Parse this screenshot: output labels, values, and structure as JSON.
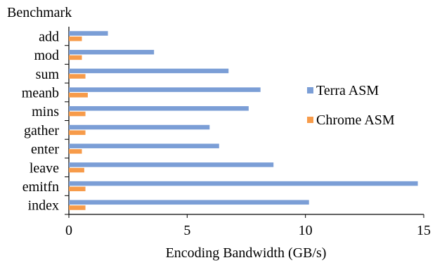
{
  "chart_data": {
    "type": "bar",
    "orientation": "horizontal",
    "title": "",
    "ylabel": "Benchmark",
    "xlabel": "Encoding Bandwidth (GB/s)",
    "categories": [
      "add",
      "mod",
      "sum",
      "meanb",
      "mins",
      "gather",
      "enter",
      "leave",
      "emitfn",
      "index"
    ],
    "series": [
      {
        "name": "Terra ASM",
        "color": "#7b9ed6",
        "values": [
          1.65,
          3.6,
          6.75,
          8.1,
          7.6,
          5.95,
          6.35,
          8.65,
          14.75,
          10.15
        ]
      },
      {
        "name": "Chrome ASM",
        "color": "#f79b4a",
        "values": [
          0.55,
          0.55,
          0.7,
          0.8,
          0.7,
          0.7,
          0.55,
          0.65,
          0.7,
          0.7
        ]
      }
    ],
    "xlim": [
      0,
      15
    ],
    "xticks": [
      "0",
      "5",
      "10",
      "15"
    ],
    "grid": false,
    "legend_position": "right"
  }
}
